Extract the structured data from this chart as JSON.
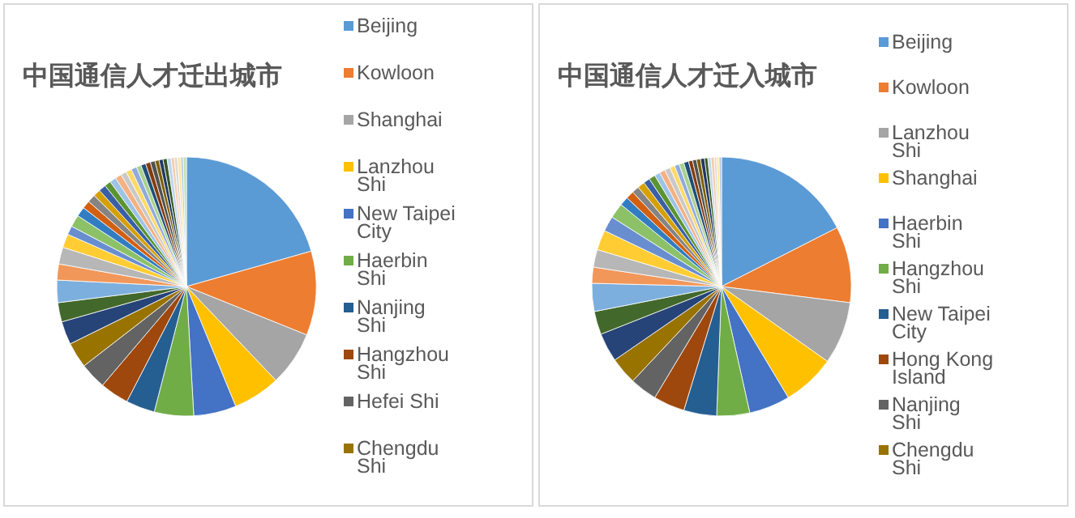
{
  "chart_data": [
    {
      "type": "pie",
      "title": "中国通信人才迁出城市",
      "legend": "right",
      "categories": [
        "Beijing",
        "Kowloon",
        "Shanghai",
        "Lanzhou Shi",
        "New Taipei City",
        "Haerbin Shi",
        "Nanjing Shi",
        "Hangzhou Shi",
        "Hefei Shi",
        "Chengdu Shi",
        null,
        null,
        null,
        null,
        null,
        null,
        null,
        null,
        null,
        null,
        null,
        null,
        null,
        null,
        null,
        null,
        null,
        null,
        null,
        null,
        null,
        null,
        null,
        null,
        null,
        null,
        null,
        null,
        null,
        null,
        null,
        null
      ],
      "values": [
        20.6,
        10.5,
        6.8,
        5.9,
        5.3,
        4.9,
        3.6,
        3.6,
        3.3,
        3.2,
        2.9,
        2.4,
        2.8,
        2.0,
        2.1,
        1.7,
        1.1,
        1.5,
        1.2,
        1.0,
        1.0,
        0.9,
        0.9,
        0.8,
        0.8,
        0.8,
        0.7,
        0.7,
        0.7,
        0.6,
        0.6,
        0.6,
        0.6,
        0.5,
        0.5,
        0.5,
        0.5,
        0.4,
        0.4,
        0.4,
        0.3,
        0.4
      ],
      "colors": [
        "#5b9bd5",
        "#ed7d31",
        "#a5a5a5",
        "#ffc000",
        "#4472c4",
        "#70ad47",
        "#255e91",
        "#9e480e",
        "#636363",
        "#997300",
        "#264478",
        "#43682b",
        "#7cafdd",
        "#f1975a",
        "#b7b7b7",
        "#ffcd33",
        "#698ed0",
        "#8cc168",
        "#327dc2",
        "#d26012",
        "#848484",
        "#d5a000",
        "#3a5fa4",
        "#5b9431",
        "#9dc3e6",
        "#f4b183",
        "#c9c9c9",
        "#ffd966",
        "#8faadc",
        "#a9d18e",
        "#1f4e79",
        "#843c0c",
        "#525252",
        "#7f6000",
        "#203864",
        "#385723",
        "#bdd7ee",
        "#f8cbad",
        "#dbdbdb",
        "#ffe699",
        "#b4c7e7",
        "#c5e0b4"
      ]
    },
    {
      "type": "pie",
      "title": "中国通信人才迁入城市",
      "legend": "right",
      "categories": [
        "Beijing",
        "Kowloon",
        "Lanzhou Shi",
        "Shanghai",
        "Haerbin Shi",
        "Hangzhou Shi",
        "New Taipei City",
        "Hong Kong Island",
        "Nanjing Shi",
        "Chengdu Shi",
        null,
        null,
        null,
        null,
        null,
        null,
        null,
        null,
        null,
        null,
        null,
        null,
        null,
        null,
        null,
        null,
        null,
        null,
        null,
        null,
        null,
        null,
        null,
        null,
        null,
        null,
        null,
        null,
        null,
        null,
        null
      ],
      "values": [
        17.5,
        9.5,
        7.8,
        6.6,
        5.1,
        4.1,
        4.1,
        3.9,
        3.4,
        3.4,
        3.6,
        2.9,
        3.5,
        2.0,
        2.2,
        2.5,
        1.9,
        1.9,
        1.1,
        1.0,
        0.9,
        0.9,
        0.8,
        0.8,
        0.7,
        0.7,
        0.7,
        0.6,
        0.6,
        0.6,
        0.6,
        0.5,
        0.5,
        0.5,
        0.5,
        0.4,
        0.4,
        0.4,
        0.3,
        0.3,
        0.3
      ],
      "colors": [
        "#5b9bd5",
        "#ed7d31",
        "#a5a5a5",
        "#ffc000",
        "#4472c4",
        "#70ad47",
        "#255e91",
        "#9e480e",
        "#636363",
        "#997300",
        "#264478",
        "#43682b",
        "#7cafdd",
        "#f1975a",
        "#b7b7b7",
        "#ffcd33",
        "#698ed0",
        "#8cc168",
        "#327dc2",
        "#d26012",
        "#848484",
        "#d5a000",
        "#3a5fa4",
        "#5b9431",
        "#9dc3e6",
        "#f4b183",
        "#c9c9c9",
        "#ffd966",
        "#8faadc",
        "#a9d18e",
        "#1f4e79",
        "#843c0c",
        "#525252",
        "#7f6000",
        "#203864",
        "#385723",
        "#bdd7ee",
        "#f8cbad",
        "#dbdbdb",
        "#ffe699",
        "#b4c7e7"
      ]
    }
  ]
}
